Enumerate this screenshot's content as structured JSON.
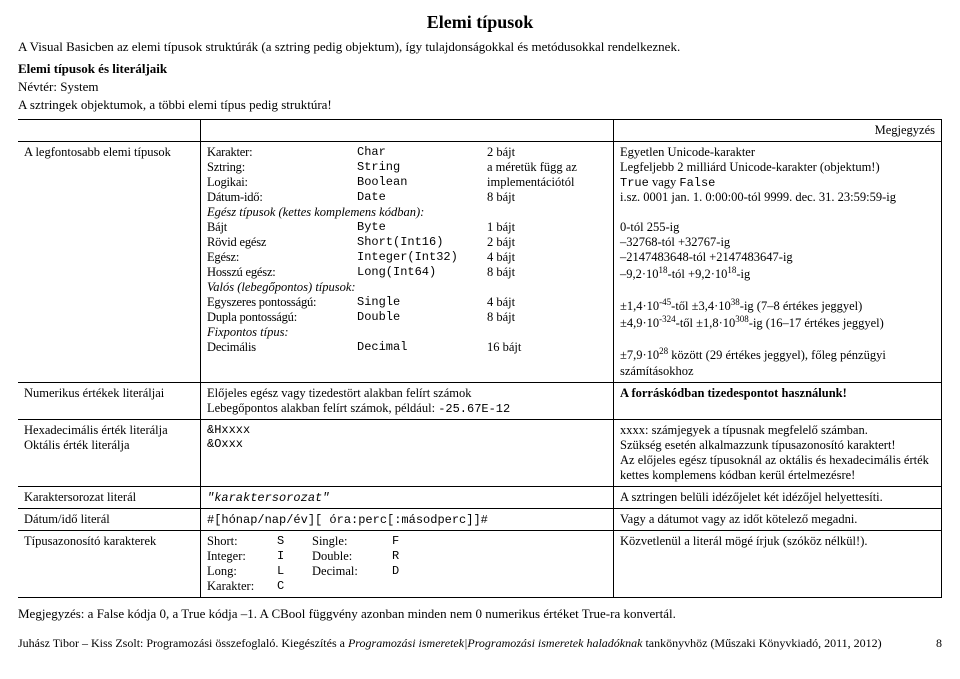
{
  "title": "Elemi típusok",
  "intro": {
    "line1": "A Visual Basicben az elemi típusok struktúrák (a sztring pedig objektum), így tulajdonságokkal és metódusokkal rendelkeznek.",
    "subhead": "Elemi típusok és literáljaik",
    "line2": "Névtér: System",
    "line3": "A sztringek objektumok, a többi elemi típus pedig struktúra!"
  },
  "table": {
    "noteHeader": "Megjegyzés",
    "rows": [
      {
        "label": "A legfontosabb elemi típusok",
        "middle": {
          "type": "types"
        },
        "note": {
          "type": "types_notes"
        }
      },
      {
        "label": "Numerikus értékek literáljai",
        "middle": {
          "type": "numlit"
        },
        "note": {
          "text": "A forráskódban tizedespontot használunk!",
          "bold": true
        }
      },
      {
        "label": "Hexadecimális érték literálja\nOktális érték literálja",
        "middle": {
          "type": "hexoct"
        },
        "note": {
          "type": "hexnote"
        }
      },
      {
        "label": "Karaktersorozat literál",
        "middle": {
          "mono_it": "\"karaktersorozat\""
        },
        "note": {
          "text": "A sztringen belüli idézőjelet két idézőjel helyettesíti."
        }
      },
      {
        "label": "Dátum/idő literál",
        "middle": {
          "mono": "#[hónap/nap/év][ óra:perc[:másodperc]]#"
        },
        "note": {
          "text": "Vagy a dátumot vagy az időt kötelező megadni."
        }
      },
      {
        "label": "Típusazonosító karakterek",
        "middle": {
          "type": "tc"
        },
        "note": {
          "text": "Közvetlenül a literál mögé írjuk (szóköz nélkül!)."
        }
      }
    ]
  },
  "types": [
    {
      "n": "Karakter:",
      "t": "Char",
      "s": "2 bájt"
    },
    {
      "n": "Sztring:",
      "t": "String",
      "s": "a méretük függ az"
    },
    {
      "n": "Logikai:",
      "t": "Boolean",
      "s": "implementációtól"
    },
    {
      "n": "Dátum-idő:",
      "t": "Date",
      "s": "8 bájt"
    },
    {
      "hdr": "Egész típusok (kettes komplemens kódban):"
    },
    {
      "n": "Bájt",
      "t": "Byte",
      "s": "1 bájt"
    },
    {
      "n": "Rövid egész",
      "t": "Short(Int16)",
      "s": "2 bájt"
    },
    {
      "n": "Egész:",
      "t": "Integer(Int32)",
      "s": "4 bájt"
    },
    {
      "n": "Hosszú egész:",
      "t": "Long(Int64)",
      "s": "8 bájt"
    },
    {
      "hdr": "Valós (lebegőpontos) típusok:"
    },
    {
      "n": "Egyszeres pontosságú:",
      "t": "Single",
      "s": "4 bájt"
    },
    {
      "n": "Dupla pontosságú:",
      "t": "Double",
      "s": "8 bájt"
    },
    {
      "hdr": "Fixpontos típus:"
    },
    {
      "n": "Decimális",
      "t": "Decimal",
      "s": "16 bájt"
    }
  ],
  "types_notes": [
    "Egyetlen Unicode-karakter",
    "Legfeljebb 2 milliárd Unicode-karakter (objektum!)",
    {
      "pre": "True",
      "mid": " vagy ",
      "post": "False"
    },
    "i.sz. 0001 jan. 1. 0:00:00-tól 9999. dec. 31. 23:59:59-ig",
    "",
    "0-tól 255-ig",
    "–32768-tól +32767-ig",
    "–2147483648-tól +2147483647-ig",
    {
      "html": "–9,2·10<sup>18</sup>-tól +9,2·10<sup>18</sup>-ig"
    },
    "",
    {
      "html": "±1,4·10<sup>-45</sup>-től ±3,4·10<sup>38</sup>-ig (7–8 értékes jeggyel)"
    },
    {
      "html": "±4,9·10<sup>-324</sup>-től ±1,8·10<sup>308</sup>-ig (16–17 értékes jeggyel)"
    },
    "",
    {
      "html": "±7,9·10<sup>28</sup> között (29 értékes jeggyel), főleg pénzügyi számításokhoz"
    }
  ],
  "numlit": {
    "l1": "Előjeles egész vagy tizedestört alakban felírt számok",
    "l2a": "Lebegőpontos alakban felírt számok, például: ",
    "l2b": "-25.67E-12"
  },
  "hexoct": {
    "a": "&Hxxxx",
    "b": "&Oxxx"
  },
  "hexnote": {
    "l1": "xxxx: számjegyek a típusnak megfelelő számban.",
    "l2": "Szükség esetén alkalmazzunk típusazonosító karaktert!",
    "l3": "Az előjeles egész típusoknál az oktális és hexadecimális érték kettes komplemens kódban kerül értelmezésre!"
  },
  "tc": [
    {
      "a": "Short:",
      "b": "S",
      "c": "Single:",
      "d": "F"
    },
    {
      "a": "Integer:",
      "b": "I",
      "c": "Double:",
      "d": "R"
    },
    {
      "a": "Long:",
      "b": "L",
      "c": "Decimal:",
      "d": "D"
    },
    {
      "a": "Karakter:",
      "b": "C",
      "c": "",
      "d": ""
    }
  ],
  "footnote": "Megjegyzés: a False kódja 0, a True kódja –1. A CBool függvény azonban minden nem 0 numerikus értéket True-ra konvertál.",
  "footer": {
    "left_a": "Juhász Tibor – Kiss Zsolt: Programozási összefoglaló. Kiegészítés a ",
    "left_b": "Programozási ismeretek|Programozási ismeretek haladóknak",
    "left_c": " tankönyvhöz (Műszaki Könyvkiadó, 2011, 2012)",
    "page": "8"
  }
}
